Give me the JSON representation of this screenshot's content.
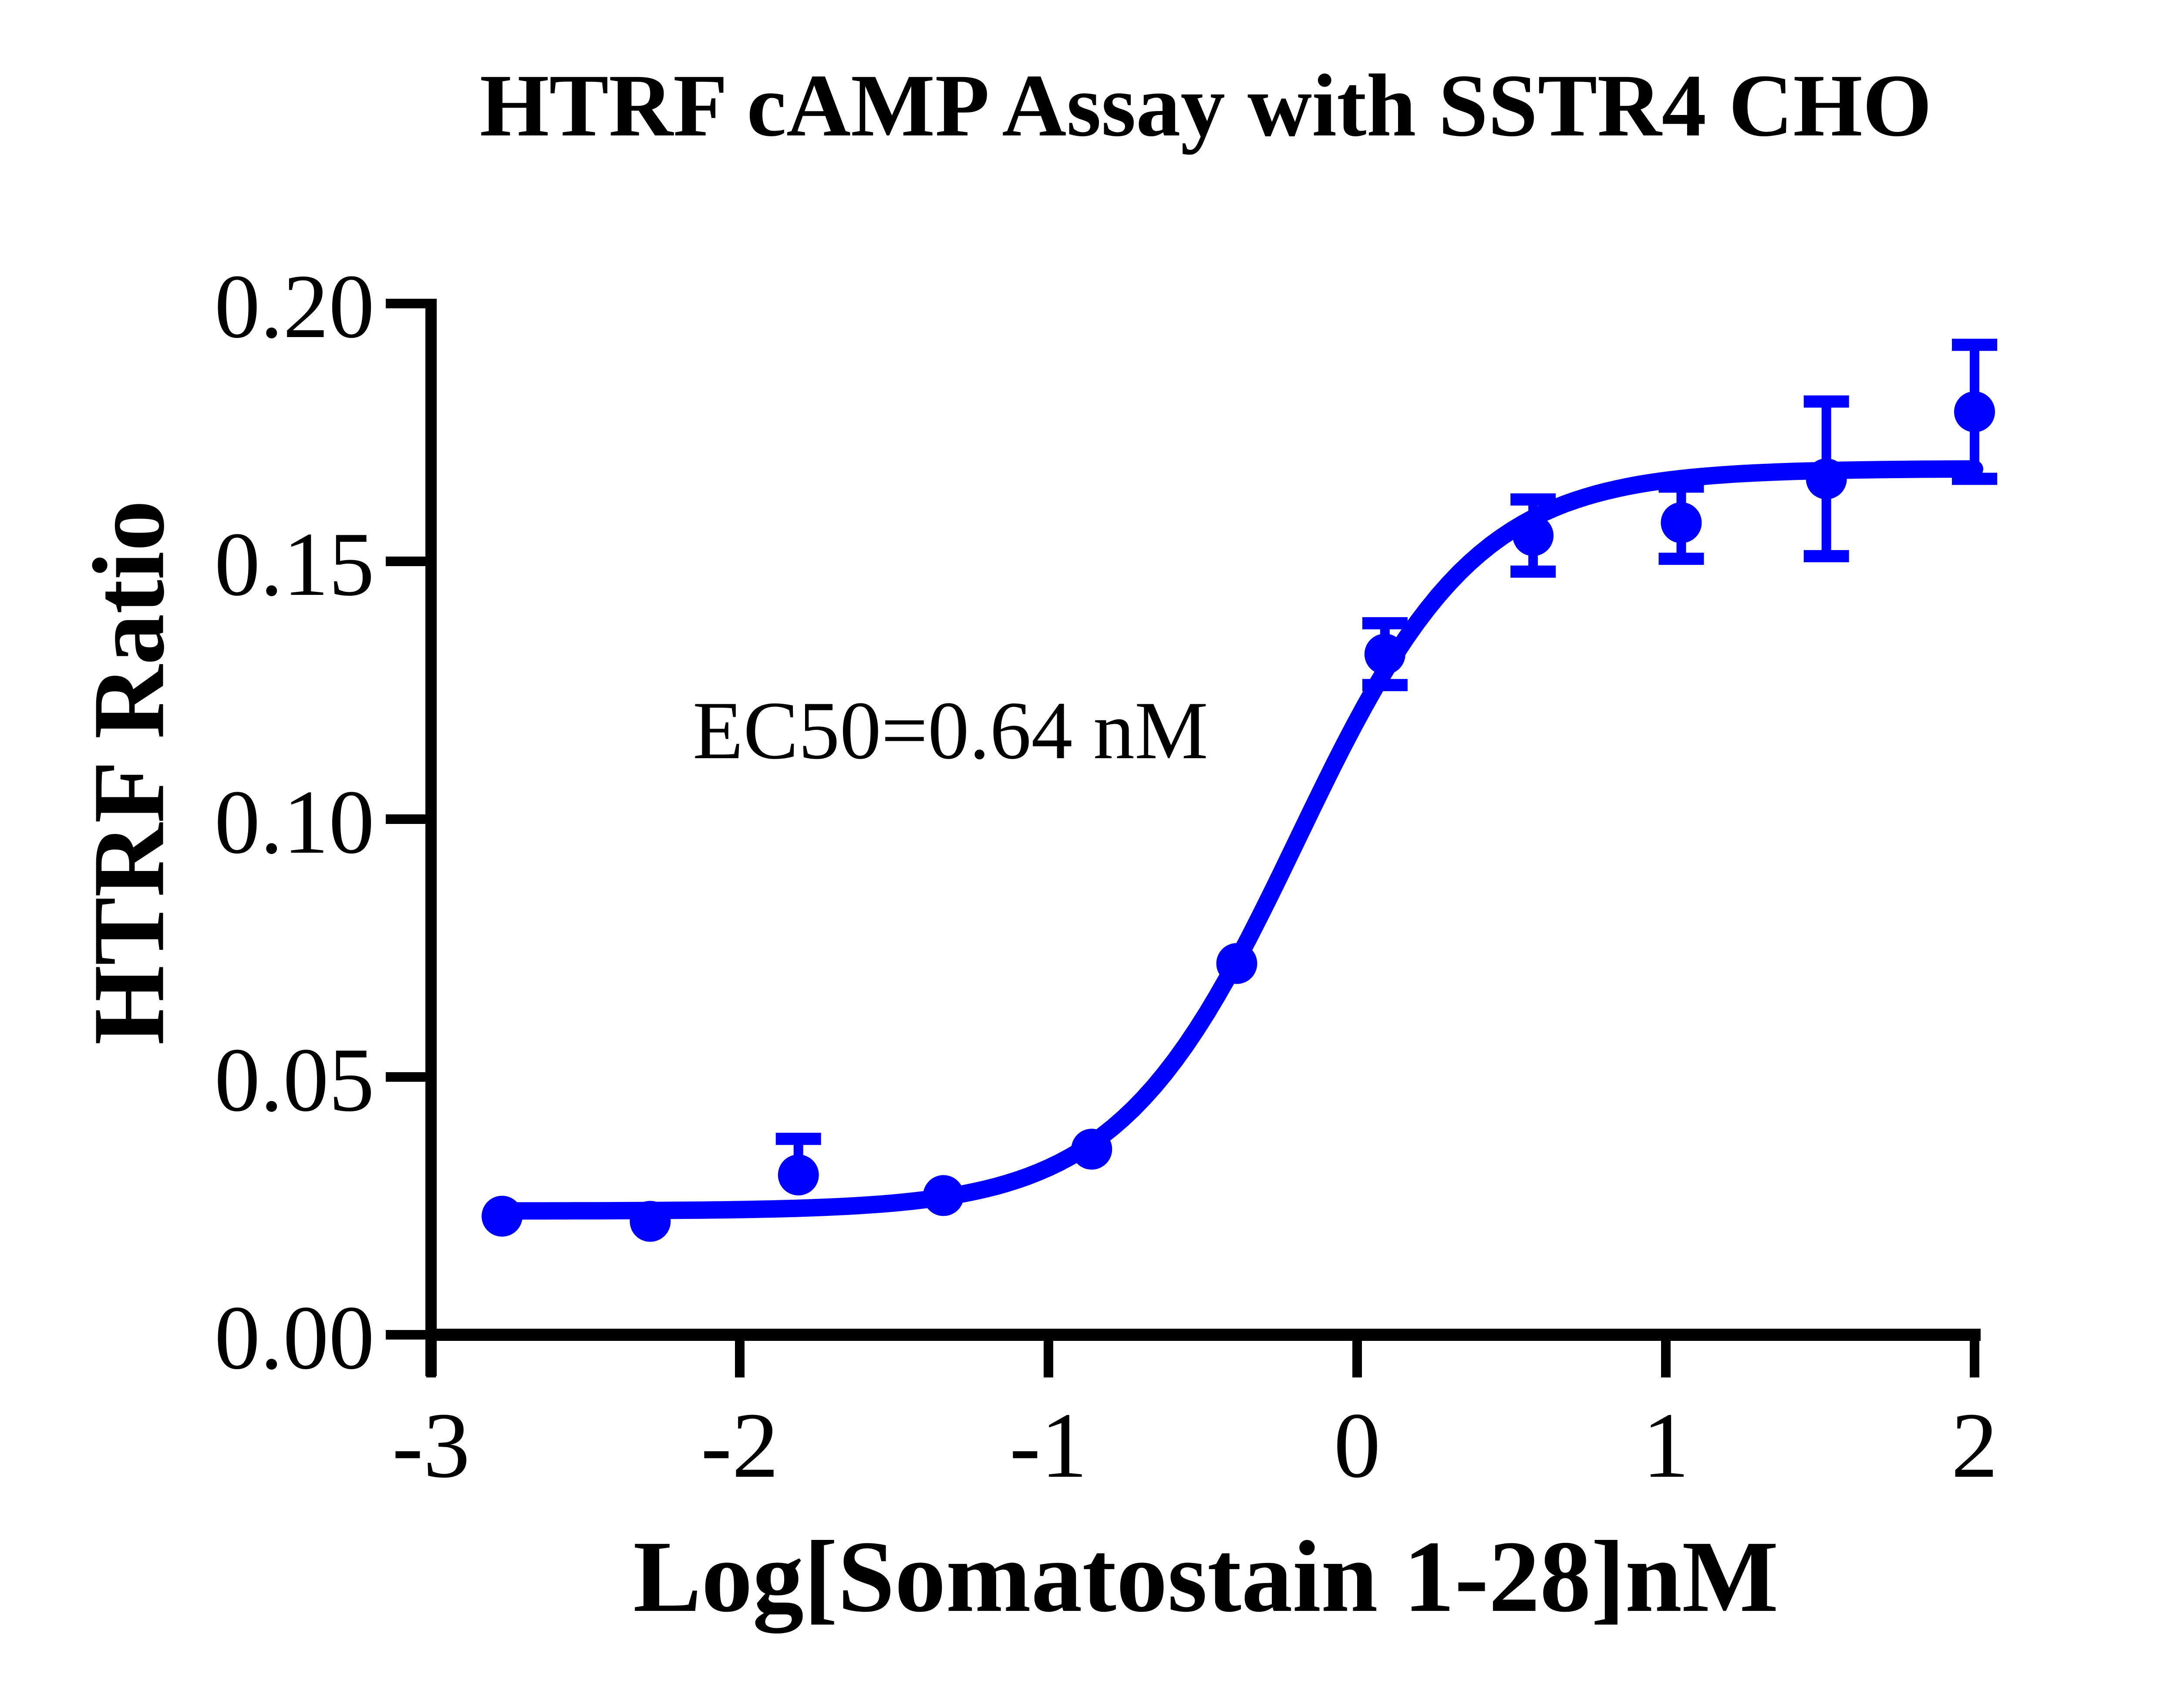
{
  "title": "HTRF cAMP Assay with SSTR4 CHO",
  "annotation": "EC50=0.64 nM",
  "chart_data": {
    "type": "scatter",
    "title": "HTRF cAMP Assay with SSTR4 CHO",
    "xlabel": "Log[Somatostain 1-28]nM",
    "ylabel": "HTRF Ratio",
    "xlim": [
      -3,
      2
    ],
    "ylim": [
      0,
      0.2
    ],
    "x_ticks": [
      -3,
      -2,
      -1,
      0,
      1,
      2
    ],
    "y_ticks": [
      0,
      0.05,
      0.1,
      0.15,
      0.2
    ],
    "y_tick_labels": [
      "0.00",
      "0.05",
      "0.10",
      "0.15",
      "0.20"
    ],
    "grid": false,
    "legend": "none",
    "annotation": "EC50=0.64 nM",
    "ec50_nM": 0.64,
    "series_color": "#0000FE",
    "axis_color": "#000000",
    "points": [
      {
        "x": -2.77,
        "y": 0.023,
        "err_up": 0,
        "err_down": 0
      },
      {
        "x": -2.29,
        "y": 0.022,
        "err_up": 0,
        "err_down": 0
      },
      {
        "x": -1.81,
        "y": 0.031,
        "err_up": 0.007,
        "err_down": 0
      },
      {
        "x": -1.34,
        "y": 0.027,
        "err_up": 0,
        "err_down": 0
      },
      {
        "x": -0.86,
        "y": 0.036,
        "err_up": 0,
        "err_down": 0
      },
      {
        "x": -0.39,
        "y": 0.072,
        "err_up": 0,
        "err_down": 0
      },
      {
        "x": 0.09,
        "y": 0.132,
        "err_up": 0.006,
        "err_down": 0.006
      },
      {
        "x": 0.57,
        "y": 0.155,
        "err_up": 0.007,
        "err_down": 0.007
      },
      {
        "x": 1.05,
        "y": 0.1575,
        "err_up": 0.007,
        "err_down": 0.007
      },
      {
        "x": 1.52,
        "y": 0.166,
        "err_up": 0.015,
        "err_down": 0.015
      },
      {
        "x": 2.0,
        "y": 0.179,
        "err_up": 0.013,
        "err_down": 0.013
      }
    ],
    "fit_curve": {
      "model": "sigmoidal dose-response",
      "bottom": 0.024,
      "top": 0.168,
      "log_ec50": -0.194,
      "hill_slope": 1.5,
      "x_start": -2.77,
      "x_end": 2.0
    }
  }
}
